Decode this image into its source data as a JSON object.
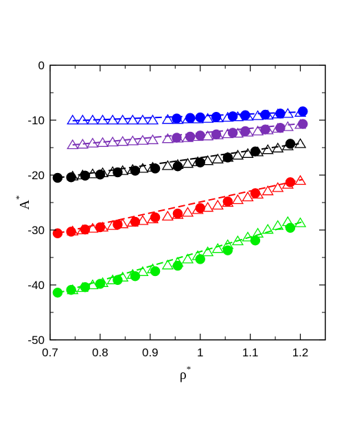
{
  "chart_data": {
    "type": "scatter",
    "title": "",
    "xlabel": "ρ",
    "xlabel_superscript": "*",
    "ylabel": "A",
    "ylabel_superscript": "*",
    "xlim": [
      0.7,
      1.25
    ],
    "ylim": [
      -50,
      0
    ],
    "xticks": [
      0.7,
      0.8,
      0.9,
      1.0,
      1.1,
      1.2
    ],
    "xtick_labels": [
      "0.7",
      "0.8",
      "0.9",
      "1",
      "1.1",
      "1.2"
    ],
    "yticks": [
      -50,
      -40,
      -30,
      -20,
      -10,
      0
    ],
    "ytick_labels": [
      "-50",
      "-40",
      "-30",
      "-20",
      "-10",
      "0"
    ],
    "grid": false,
    "legend": "none",
    "series": [
      {
        "color": "#0000ff",
        "marker": "triangle-open",
        "x": [
          0.745,
          0.765,
          0.785,
          0.805,
          0.825,
          0.845,
          0.865,
          0.885,
          0.905,
          0.935,
          0.955,
          0.975,
          0.995,
          1.015,
          1.035,
          1.055,
          1.075,
          1.095,
          1.115,
          1.135,
          1.155,
          1.175,
          1.2
        ],
        "y": [
          -10.0,
          -10.0,
          -10.0,
          -10.0,
          -10.0,
          -10.0,
          -10.0,
          -10.0,
          -10.0,
          -9.9,
          -9.9,
          -9.8,
          -9.8,
          -9.7,
          -9.6,
          -9.5,
          -9.4,
          -9.3,
          -9.2,
          -9.1,
          -8.9,
          -8.8,
          -8.6
        ],
        "fit": [
          [
            0.745,
            -10.1
          ],
          [
            1.205,
            -8.5
          ]
        ]
      },
      {
        "color": "#0000ff",
        "marker": "circle-filled",
        "x": [
          0.953,
          0.98,
          1.0,
          1.032,
          1.065,
          1.09,
          1.13,
          1.16,
          1.205
        ],
        "y": [
          -9.7,
          -9.6,
          -9.5,
          -9.4,
          -9.3,
          -9.1,
          -9.0,
          -8.8,
          -8.4
        ],
        "fit": null
      },
      {
        "color": "#7a2fb5",
        "marker": "triangle-open",
        "x": [
          0.745,
          0.765,
          0.785,
          0.805,
          0.825,
          0.845,
          0.865,
          0.885,
          0.905,
          0.935,
          0.955,
          0.975,
          0.995,
          1.015,
          1.035,
          1.055,
          1.075,
          1.095,
          1.115,
          1.135,
          1.155,
          1.175,
          1.2
        ],
        "y": [
          -14.5,
          -14.4,
          -14.2,
          -14.1,
          -14.0,
          -13.9,
          -13.8,
          -13.7,
          -13.6,
          -13.4,
          -13.3,
          -13.2,
          -13.0,
          -12.9,
          -12.7,
          -12.5,
          -12.4,
          -12.2,
          -12.0,
          -11.8,
          -11.5,
          -11.2,
          -10.8
        ],
        "fit": [
          [
            0.745,
            -14.5
          ],
          [
            1.205,
            -10.6
          ]
        ]
      },
      {
        "color": "#7a2fb5",
        "marker": "circle-filled",
        "x": [
          0.953,
          0.98,
          1.0,
          1.032,
          1.065,
          1.09,
          1.13,
          1.16,
          1.205
        ],
        "y": [
          -13.2,
          -13.0,
          -12.8,
          -12.6,
          -12.3,
          -12.0,
          -11.7,
          -11.4,
          -10.7
        ],
        "fit": null
      },
      {
        "color": "#000000",
        "marker": "triangle-open",
        "x": [
          0.745,
          0.765,
          0.785,
          0.805,
          0.825,
          0.845,
          0.865,
          0.885,
          0.905,
          0.935,
          0.955,
          0.975,
          0.995,
          1.015,
          1.035,
          1.055,
          1.075,
          1.095,
          1.115,
          1.135,
          1.155,
          1.175,
          1.2
        ],
        "y": [
          -20.2,
          -20.0,
          -19.8,
          -19.6,
          -19.4,
          -19.2,
          -19.0,
          -18.8,
          -18.6,
          -18.3,
          -18.1,
          -17.9,
          -17.6,
          -17.4,
          -17.1,
          -16.8,
          -16.4,
          -16.1,
          -15.8,
          -15.4,
          -15.1,
          -14.7,
          -14.3
        ],
        "fit": [
          [
            0.715,
            -20.5
          ],
          [
            1.205,
            -14.2
          ]
        ]
      },
      {
        "color": "#000000",
        "marker": "circle-filled",
        "x": [
          0.715,
          0.742,
          0.77,
          0.8,
          0.835,
          0.87,
          0.91,
          0.955,
          1.0,
          1.055,
          1.11,
          1.18
        ],
        "y": [
          -20.5,
          -20.4,
          -20.1,
          -19.9,
          -19.5,
          -19.2,
          -18.8,
          -18.4,
          -17.7,
          -16.8,
          -15.7,
          -14.3
        ],
        "fit": null
      },
      {
        "color": "#ff0000",
        "marker": "triangle-open",
        "x": [
          0.745,
          0.765,
          0.785,
          0.805,
          0.825,
          0.845,
          0.865,
          0.885,
          0.905,
          0.935,
          0.955,
          0.975,
          0.995,
          1.015,
          1.035,
          1.055,
          1.075,
          1.095,
          1.115,
          1.135,
          1.155,
          1.175,
          1.2
        ],
        "y": [
          -30.2,
          -30.0,
          -29.7,
          -29.5,
          -29.2,
          -28.9,
          -28.6,
          -28.3,
          -28.0,
          -27.5,
          -27.2,
          -26.8,
          -26.3,
          -25.9,
          -25.5,
          -25.0,
          -24.5,
          -24.0,
          -23.5,
          -22.9,
          -22.3,
          -21.7,
          -21.0
        ],
        "fit": [
          [
            0.715,
            -30.6
          ],
          [
            1.205,
            -20.8
          ]
        ]
      },
      {
        "color": "#ff0000",
        "marker": "circle-filled",
        "x": [
          0.715,
          0.742,
          0.77,
          0.8,
          0.835,
          0.87,
          0.91,
          0.955,
          1.0,
          1.055,
          1.11,
          1.18
        ],
        "y": [
          -30.6,
          -30.3,
          -29.9,
          -29.5,
          -29.0,
          -28.5,
          -27.7,
          -27.0,
          -26.0,
          -24.8,
          -23.3,
          -21.3
        ],
        "fit": null
      },
      {
        "color": "#00ee00",
        "marker": "triangle-open",
        "x": [
          0.745,
          0.765,
          0.785,
          0.805,
          0.825,
          0.845,
          0.865,
          0.885,
          0.905,
          0.935,
          0.955,
          0.975,
          0.995,
          1.015,
          1.035,
          1.055,
          1.075,
          1.095,
          1.115,
          1.135,
          1.155,
          1.175,
          1.2
        ],
        "y": [
          -40.9,
          -40.5,
          -40.0,
          -39.6,
          -39.1,
          -38.6,
          -38.1,
          -37.6,
          -37.1,
          -36.4,
          -35.9,
          -35.3,
          -34.7,
          -34.0,
          -33.4,
          -32.7,
          -32.0,
          -31.3,
          -30.6,
          -29.9,
          -29.2,
          -28.5,
          -28.7
        ],
        "fit": [
          [
            0.715,
            -41.5
          ],
          [
            1.205,
            -28.5
          ]
        ]
      },
      {
        "color": "#00ee00",
        "marker": "circle-filled",
        "x": [
          0.715,
          0.742,
          0.77,
          0.8,
          0.835,
          0.87,
          0.91,
          0.955,
          1.0,
          1.055,
          1.11,
          1.18
        ],
        "y": [
          -41.4,
          -40.9,
          -40.4,
          -39.8,
          -39.1,
          -38.4,
          -37.5,
          -36.5,
          -35.3,
          -33.7,
          -31.9,
          -29.6
        ],
        "fit": null
      }
    ]
  }
}
